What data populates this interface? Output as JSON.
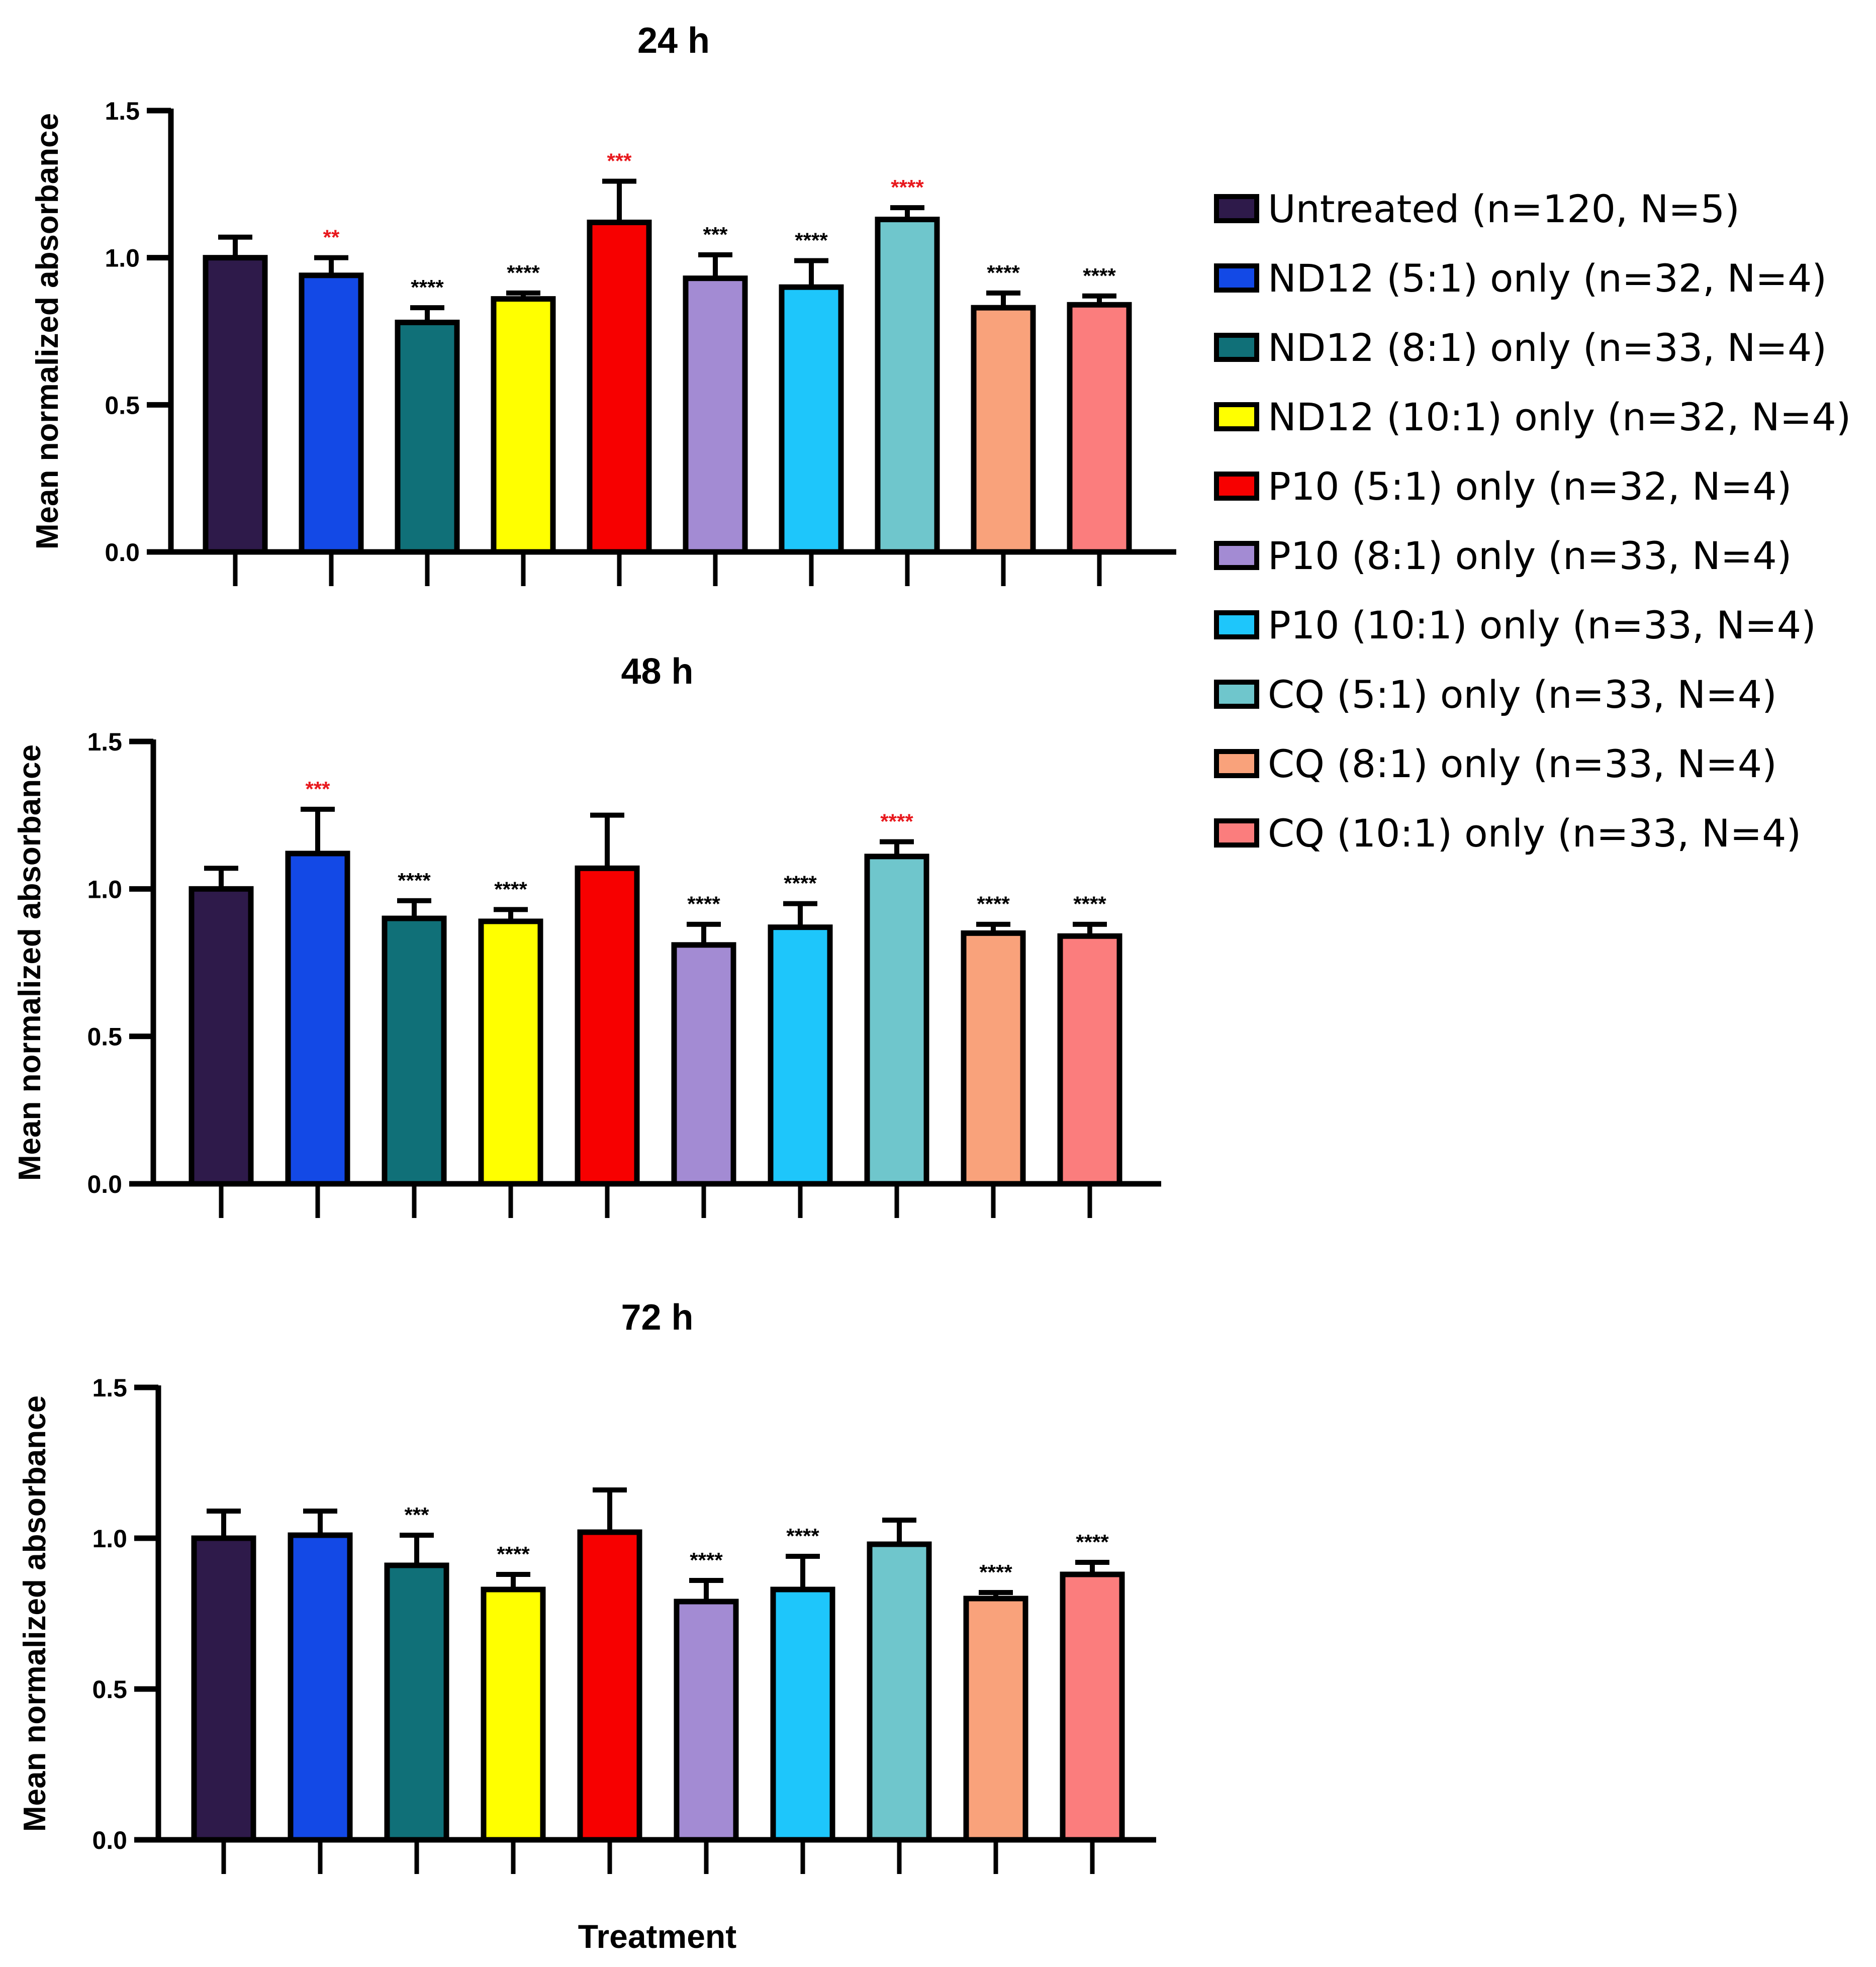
{
  "chart_data": [
    {
      "type": "bar",
      "title": "24 h",
      "ylabel": "Mean normalized absorbance",
      "xlabel": "",
      "ylim": [
        0,
        1.5
      ],
      "yticks": [
        "0.0",
        "0.5",
        "1.0",
        "1.5"
      ],
      "categories": [
        "Untreated",
        "ND12 (5:1) only",
        "ND12 (8:1) only",
        "ND12 (10:1) only",
        "P10 (5:1) only",
        "P10 (8:1) only",
        "P10 (10:1) only",
        "CQ (5:1) only",
        "CQ (8:1) only",
        "CQ (10:1) only"
      ],
      "values": [
        1.0,
        0.94,
        0.78,
        0.86,
        1.12,
        0.93,
        0.9,
        1.13,
        0.83,
        0.84
      ],
      "errors": [
        0.07,
        0.06,
        0.05,
        0.02,
        0.14,
        0.08,
        0.09,
        0.04,
        0.05,
        0.03
      ],
      "significance": [
        "",
        "**",
        "****",
        "****",
        "***",
        "***",
        "****",
        "****",
        "****",
        "****"
      ],
      "significance_colors": [
        "#000000",
        "#e8191e",
        "#000000",
        "#000000",
        "#e8191e",
        "#000000",
        "#000000",
        "#e8191e",
        "#000000",
        "#000000"
      ]
    },
    {
      "type": "bar",
      "title": "48 h",
      "ylabel": "Mean normalized absorbance",
      "xlabel": "",
      "ylim": [
        0,
        1.5
      ],
      "yticks": [
        "0.0",
        "0.5",
        "1.0",
        "1.5"
      ],
      "categories": [
        "Untreated",
        "ND12 (5:1) only",
        "ND12 (8:1) only",
        "ND12 (10:1) only",
        "P10 (5:1) only",
        "P10 (8:1) only",
        "P10 (10:1) only",
        "CQ (5:1) only",
        "CQ (8:1) only",
        "CQ (10:1) only"
      ],
      "values": [
        1.0,
        1.12,
        0.9,
        0.89,
        1.07,
        0.81,
        0.87,
        1.11,
        0.85,
        0.84
      ],
      "errors": [
        0.07,
        0.15,
        0.06,
        0.04,
        0.18,
        0.07,
        0.08,
        0.05,
        0.03,
        0.04
      ],
      "significance": [
        "",
        "***",
        "****",
        "****",
        "",
        "****",
        "****",
        "****",
        "****",
        "****"
      ],
      "significance_colors": [
        "#000000",
        "#e8191e",
        "#000000",
        "#000000",
        "#000000",
        "#000000",
        "#000000",
        "#e8191e",
        "#000000",
        "#000000"
      ]
    },
    {
      "type": "bar",
      "title": "72 h",
      "ylabel": "Mean normalized absorbance",
      "xlabel": "Treatment",
      "ylim": [
        0,
        1.5
      ],
      "yticks": [
        "0.0",
        "0.5",
        "1.0",
        "1.5"
      ],
      "categories": [
        "Untreated",
        "ND12 (5:1) only",
        "ND12 (8:1) only",
        "ND12 (10:1) only",
        "P10 (5:1) only",
        "P10 (8:1) only",
        "P10 (10:1) only",
        "CQ (5:1) only",
        "CQ (8:1) only",
        "CQ (10:1) only"
      ],
      "values": [
        1.0,
        1.01,
        0.91,
        0.83,
        1.02,
        0.79,
        0.83,
        0.98,
        0.8,
        0.88
      ],
      "errors": [
        0.09,
        0.08,
        0.1,
        0.05,
        0.14,
        0.07,
        0.11,
        0.08,
        0.02,
        0.04
      ],
      "significance": [
        "",
        "",
        "***",
        "****",
        "",
        "****",
        "****",
        "",
        "****",
        "****"
      ],
      "significance_colors": [
        "#000000",
        "#000000",
        "#000000",
        "#000000",
        "#000000",
        "#000000",
        "#000000",
        "#000000",
        "#000000",
        "#000000"
      ]
    }
  ],
  "legend": [
    {
      "label": "Untreated (n=120, N=5)",
      "color": "#2e1a4a"
    },
    {
      "label": "ND12 (5:1) only (n=32, N=4)",
      "color": "#1349e6"
    },
    {
      "label": "ND12 (8:1) only (n=33, N=4)",
      "color": "#107078"
    },
    {
      "label": "ND12 (10:1) only (n=32, N=4)",
      "color": "#ffff00"
    },
    {
      "label": "P10 (5:1) only (n=32, N=4)",
      "color": "#f70000"
    },
    {
      "label": "P10 (8:1) only (n=33, N=4)",
      "color": "#a38bd3"
    },
    {
      "label": "P10 (10:1) only (n=33, N=4)",
      "color": "#1ec6fb"
    },
    {
      "label": "CQ (5:1) only (n=33, N=4)",
      "color": "#6fc6cc"
    },
    {
      "label": "CQ (8:1) only (n=33, N=4)",
      "color": "#f9a27b"
    },
    {
      "label": "CQ (10:1) only (n=33, N=4)",
      "color": "#fb7d7d"
    }
  ],
  "legend_position": "right"
}
